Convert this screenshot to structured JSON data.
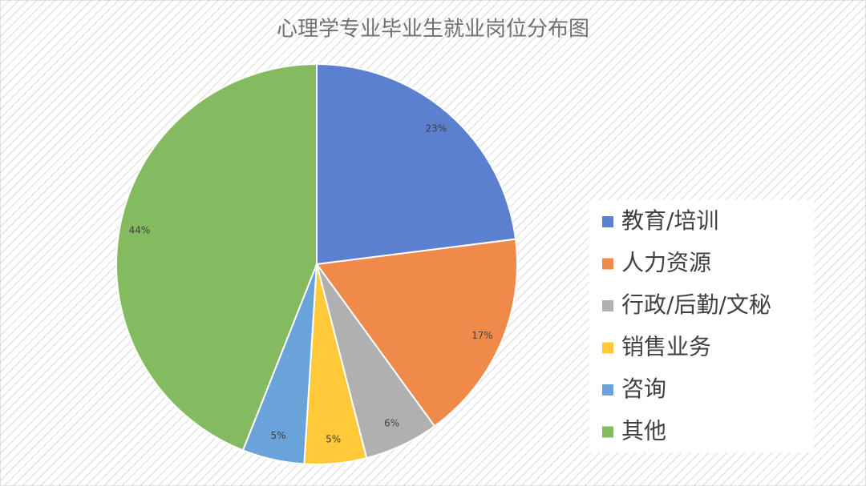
{
  "chart_data": {
    "type": "pie",
    "title": "心理学专业毕业生就业岗位分布图",
    "categories": [
      "教育/培训",
      "人力资源",
      "行政/后勤/文秘",
      "销售业务",
      "咨询",
      "其他"
    ],
    "values": [
      23,
      17,
      6,
      5,
      5,
      44
    ],
    "value_labels": [
      "23%",
      "17%",
      "6%",
      "5%",
      "5%",
      "44%"
    ],
    "colors": [
      "#5b80cf",
      "#ef8a4a",
      "#b0b0b0",
      "#ffc93a",
      "#6aa2da",
      "#84bb60"
    ],
    "legend": "right"
  }
}
